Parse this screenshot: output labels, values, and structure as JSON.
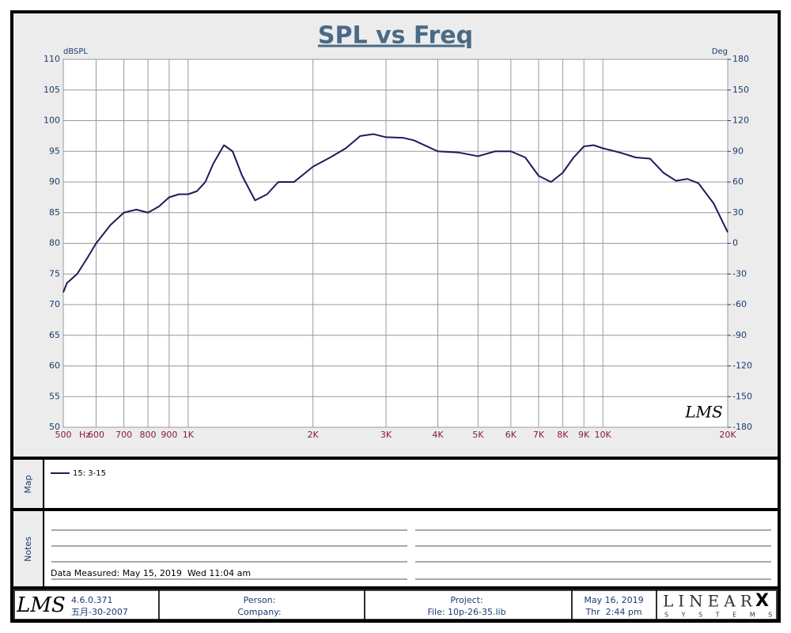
{
  "chart_data": {
    "type": "line",
    "title": "SPL vs Freq",
    "y_label": "dBSPL",
    "y2_label": "Deg",
    "x_label": "Hz",
    "xscale": "log",
    "grid": true,
    "annotations": [
      "LMS"
    ],
    "xlim": [
      500,
      20000
    ],
    "xticks": [
      500,
      600,
      700,
      800,
      900,
      {
        "value": 1000,
        "label": "1K"
      },
      {
        "value": 2000,
        "label": "2K"
      },
      {
        "value": 3000,
        "label": "3K"
      },
      {
        "value": 4000,
        "label": "4K"
      },
      {
        "value": 5000,
        "label": "5K"
      },
      {
        "value": 6000,
        "label": "6K"
      },
      {
        "value": 7000,
        "label": "7K"
      },
      {
        "value": 8000,
        "label": "8K"
      },
      {
        "value": 9000,
        "label": "9K"
      },
      {
        "value": 10000,
        "label": "10K"
      },
      {
        "value": 20000,
        "label": "20K"
      }
    ],
    "ylim": [
      50,
      110
    ],
    "yticks": [
      50,
      55,
      60,
      65,
      70,
      75,
      80,
      85,
      90,
      95,
      100,
      105,
      110
    ],
    "y2lim": [
      -180,
      180
    ],
    "y2ticks": [
      -180,
      -150,
      -120,
      -90,
      -60,
      -30,
      0,
      30,
      60,
      90,
      120,
      150,
      180
    ],
    "series": [
      {
        "name": "15: 3-15",
        "color": "#1c1c5c",
        "x": [
          500,
          510,
          540,
          570,
          600,
          650,
          700,
          750,
          800,
          850,
          900,
          950,
          1000,
          1050,
          1100,
          1150,
          1220,
          1280,
          1350,
          1450,
          1550,
          1650,
          1800,
          2000,
          2200,
          2400,
          2600,
          2800,
          3000,
          3300,
          3500,
          4000,
          4500,
          5000,
          5500,
          6000,
          6500,
          7000,
          7500,
          8000,
          8500,
          9000,
          9500,
          10000,
          11000,
          12000,
          13000,
          14000,
          15000,
          16000,
          17000,
          18500,
          20000
        ],
        "values": [
          72,
          73.5,
          75,
          77.5,
          80,
          83,
          85,
          85.5,
          85,
          86,
          87.5,
          88,
          88,
          88.5,
          90,
          93,
          96,
          95,
          91,
          87,
          88,
          90,
          90,
          92.5,
          94,
          95.5,
          97.5,
          97.8,
          97.3,
          97.2,
          96.8,
          95,
          94.8,
          94.2,
          95,
          95,
          94,
          91,
          90,
          91.5,
          94,
          95.8,
          96,
          95.5,
          94.8,
          94,
          93.8,
          91.5,
          90.2,
          90.5,
          89.8,
          86.5,
          81.8
        ]
      }
    ]
  },
  "map_label": "Map",
  "notes_label": "Notes",
  "data_measured": "Data Measured: May 15, 2019  Wed 11:04 am",
  "footer": {
    "logo": "LMS",
    "version": "4.6.0.371",
    "build_date": "五月-30-2007",
    "person": "Person:",
    "company": "Company:",
    "project": "Project:",
    "file": "File: 10p-26-35.lib",
    "print_date": "May 16, 2019",
    "print_time": "Thr  2:44 pm",
    "brand": "LINEAR",
    "brand_x": "X",
    "brand_sub": "S Y S T E M S"
  }
}
